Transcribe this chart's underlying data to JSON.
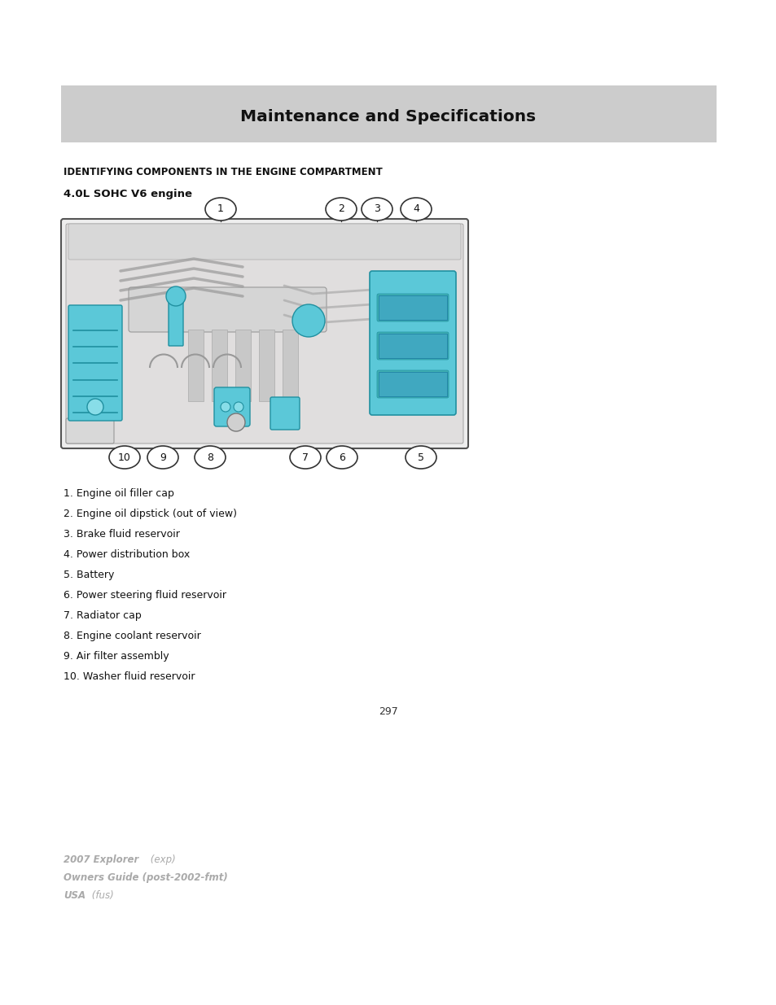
{
  "page_bg": "#ffffff",
  "header_bg": "#cccccc",
  "header_text": "Maintenance and Specifications",
  "header_text_color": "#111111",
  "section_title": "IDENTIFYING COMPONENTS IN THE ENGINE COMPARTMENT",
  "subsection_title": "4.0L SOHC V6 engine",
  "items": [
    "1. Engine oil filler cap",
    "2. Engine oil dipstick (out of view)",
    "3. Brake fluid reservoir",
    "4. Power distribution box",
    "5. Battery",
    "6. Power steering fluid reservoir",
    "7. Radiator cap",
    "8. Engine coolant reservoir",
    "9. Air filter assembly",
    "10. Washer fluid reservoir"
  ],
  "page_number": "297",
  "footer_color": "#aaaaaa",
  "cyan_color": "#5bc8d8",
  "cyan_dark": "#2090a0",
  "engine_bg": "#e8e8e8",
  "engine_line": "#666666"
}
